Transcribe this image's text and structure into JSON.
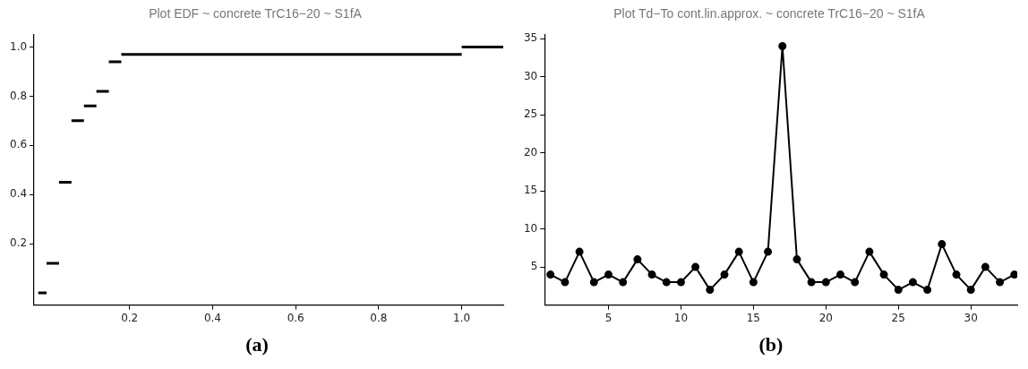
{
  "chart_data": [
    {
      "type": "line",
      "title": "Plot EDF ~ concrete TrC16−20 ~ S1fA",
      "series": [
        {
          "color": "#000000",
          "x": [
            -0.02,
            0
          ],
          "values": [
            0,
            0
          ]
        },
        {
          "color": "#000000",
          "x": [
            0,
            0.03
          ],
          "values": [
            0.12,
            0.12
          ]
        },
        {
          "color": "#000000",
          "x": [
            0.03,
            0.06
          ],
          "values": [
            0.45,
            0.45
          ]
        },
        {
          "color": "#000000",
          "x": [
            0.06,
            0.09
          ],
          "values": [
            0.7,
            0.7
          ]
        },
        {
          "color": "#000000",
          "x": [
            0.09,
            0.12
          ],
          "values": [
            0.76,
            0.76
          ]
        },
        {
          "color": "#000000",
          "x": [
            0.12,
            0.15
          ],
          "values": [
            0.82,
            0.82
          ]
        },
        {
          "color": "#000000",
          "x": [
            0.15,
            0.18
          ],
          "values": [
            0.94,
            0.94
          ]
        },
        {
          "color": "#000000",
          "x": [
            0.18,
            1.0
          ],
          "values": [
            0.97,
            0.97
          ]
        },
        {
          "color": "#000000",
          "x": [
            1.0,
            1.1
          ],
          "values": [
            1.0,
            1.0
          ]
        }
      ],
      "xlim": [
        -0.03,
        1.1
      ],
      "ylim": [
        -0.05,
        1.05
      ],
      "xticks": [
        0.2,
        0.4,
        0.6,
        0.8,
        {
          "value": 1,
          "label": "1.0"
        }
      ],
      "yticks": [
        0.2,
        0.4,
        0.6,
        0.8,
        {
          "value": 1,
          "label": "1.0"
        }
      ],
      "grid": false,
      "legend": false,
      "marker": "none",
      "annotations": [
        "(a)"
      ]
    },
    {
      "type": "line",
      "title": "Plot Td−To cont.lin.approx. ~ concrete TrC16−20 ~ S1fA",
      "x": [
        1,
        2,
        3,
        4,
        5,
        6,
        7,
        8,
        9,
        10,
        11,
        12,
        13,
        14,
        15,
        16,
        17,
        18,
        19,
        20,
        21,
        22,
        23,
        24,
        25,
        26,
        27,
        28,
        29,
        30,
        31,
        32,
        33
      ],
      "values": [
        4,
        3,
        7,
        3,
        4,
        3,
        6,
        4,
        3,
        3,
        5,
        2,
        4,
        7,
        3,
        7,
        34,
        6,
        3,
        3,
        4,
        3,
        7,
        4,
        2,
        3,
        2,
        8,
        4,
        2,
        5,
        3,
        4
      ],
      "color": "#000000",
      "xlim": [
        0.6,
        33.2
      ],
      "ylim": [
        0,
        35.5
      ],
      "xticks": [
        5,
        10,
        15,
        20,
        25,
        30
      ],
      "yticks": [
        5,
        10,
        15,
        20,
        25,
        30,
        35
      ],
      "grid": false,
      "legend": false,
      "marker": "circle",
      "line_style": "solid",
      "annotations": [
        "(b)"
      ]
    }
  ]
}
